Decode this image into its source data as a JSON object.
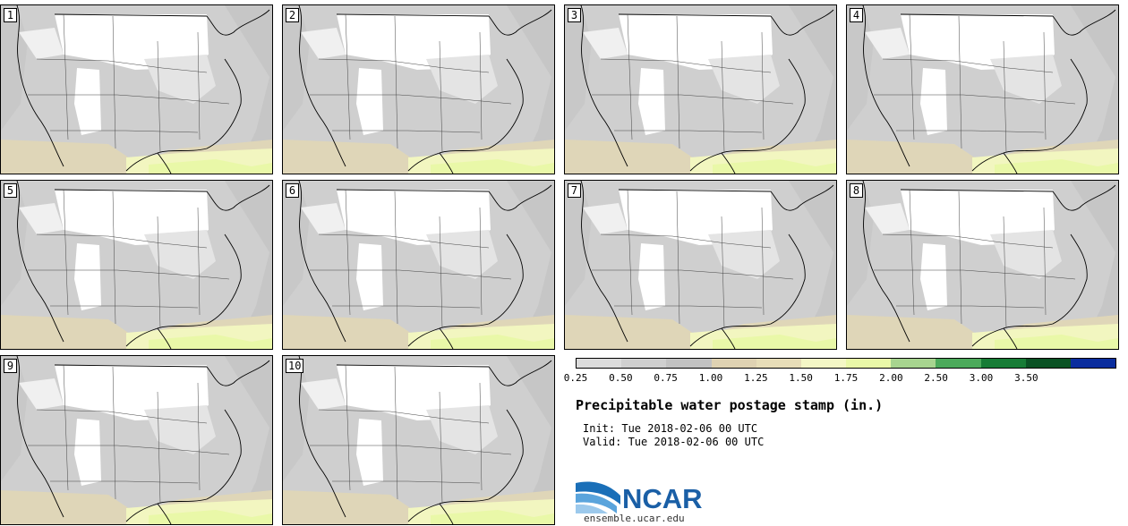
{
  "panels": [
    {
      "label": "1"
    },
    {
      "label": "2"
    },
    {
      "label": "3"
    },
    {
      "label": "4"
    },
    {
      "label": "5"
    },
    {
      "label": "6"
    },
    {
      "label": "7"
    },
    {
      "label": "8"
    },
    {
      "label": "9"
    },
    {
      "label": "10"
    }
  ],
  "colorbar": {
    "ticks": [
      "0.25",
      "0.50",
      "0.75",
      "1.00",
      "1.25",
      "1.50",
      "1.75",
      "2.00",
      "2.50",
      "3.00",
      "3.50"
    ],
    "colors": [
      "#dcdcdc",
      "#cfcfcf",
      "#c2c2c2",
      "#dfd2b2",
      "#e7ddb8",
      "#f4f7c6",
      "#e9f8a8",
      "#a7d48f",
      "#4caa5b",
      "#177c36",
      "#0a5224",
      "#0a2d9e"
    ]
  },
  "title": "Precipitable water postage stamp (in.)",
  "init_line": "Init: Tue 2018-02-06 00 UTC",
  "valid_line": "Valid: Tue 2018-02-06 00 UTC",
  "logo": {
    "text": "NCAR",
    "site": "ensemble.ucar.edu"
  }
}
